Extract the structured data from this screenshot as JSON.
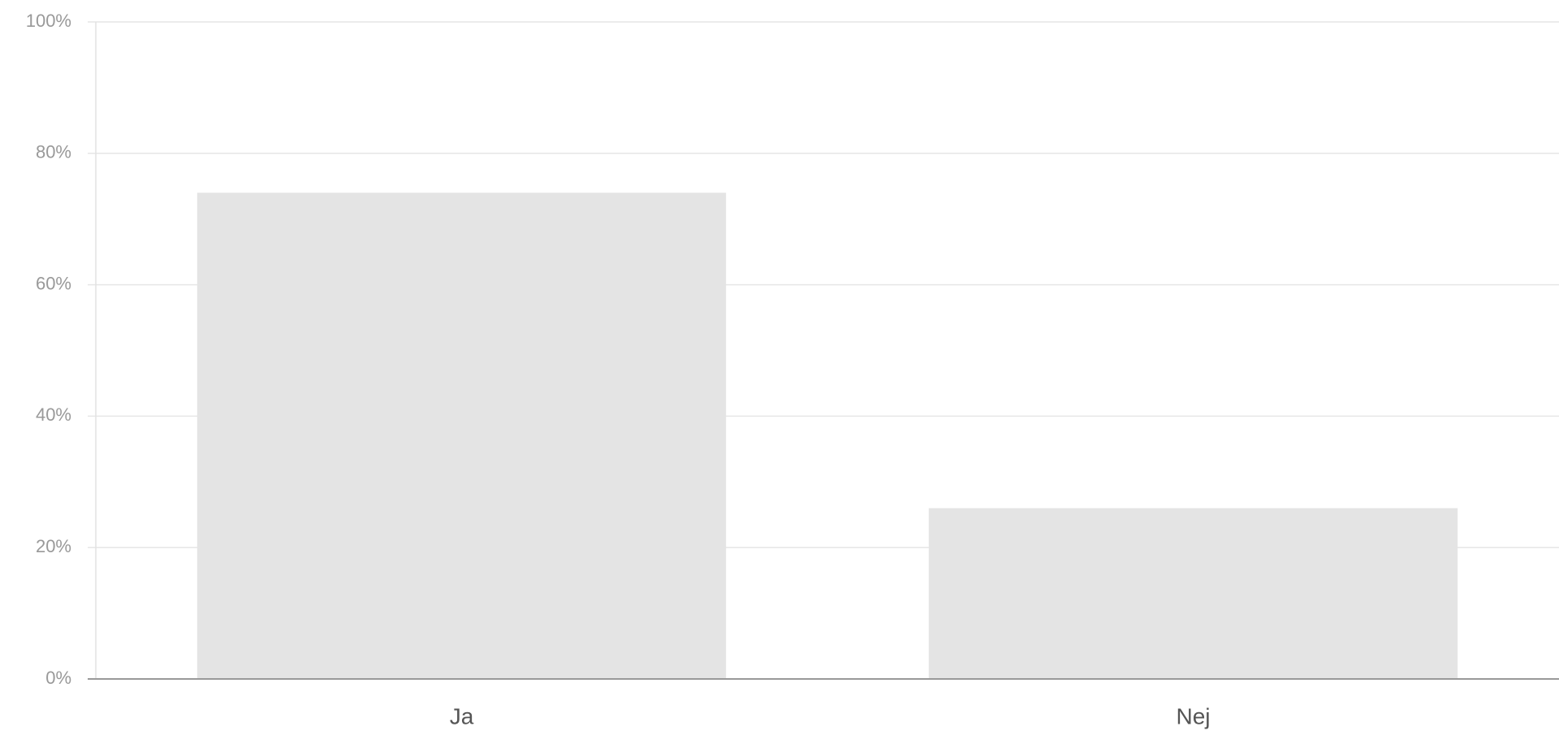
{
  "chart_data": {
    "type": "bar",
    "categories": [
      "Ja",
      "Nej"
    ],
    "values": [
      74,
      26
    ],
    "color": "#e4e4e4",
    "ylim": [
      0,
      100
    ],
    "yticks": [
      {
        "value": 0,
        "label": "0%"
      },
      {
        "value": 20,
        "label": "20%"
      },
      {
        "value": 40,
        "label": "40%"
      },
      {
        "value": 60,
        "label": "60%"
      },
      {
        "value": 80,
        "label": "80%"
      },
      {
        "value": 100,
        "label": "100%"
      }
    ],
    "grid": true
  }
}
